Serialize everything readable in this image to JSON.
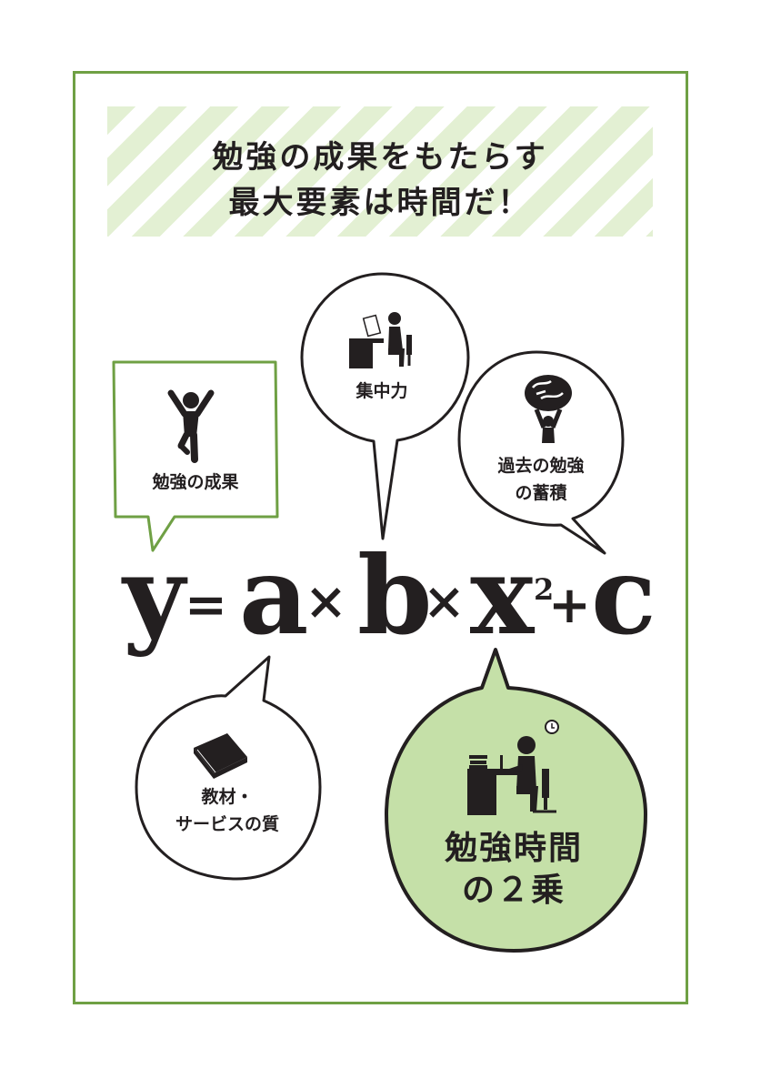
{
  "title": {
    "line1": "勉強の成果をもたらす",
    "line2": "最大要素は時間だ！"
  },
  "formula": {
    "y": "y",
    "eq": "=",
    "a": "a",
    "times1": "×",
    "b": "b",
    "times2": "×",
    "x": "x",
    "exp": "2",
    "plus": "+",
    "c": "c"
  },
  "bubbles": {
    "result": "勉強の成果",
    "focus": "集中力",
    "past_line1": "過去の勉強",
    "past_line2": "の蓄積",
    "material_line1": "教材・",
    "material_line2": "サービスの質",
    "time_line1": "勉強時間",
    "time_line2": "の２乗"
  },
  "icons": [
    "person-jumping-icon",
    "person-at-desk-icon",
    "person-carrying-brain-icon",
    "book-icon",
    "clock-icon",
    "person-studying-icon"
  ],
  "colors": {
    "frame": "#6fa044",
    "highlight": "#c5e0a8",
    "stripe": "#e3f0d3",
    "ink": "#231f20"
  }
}
